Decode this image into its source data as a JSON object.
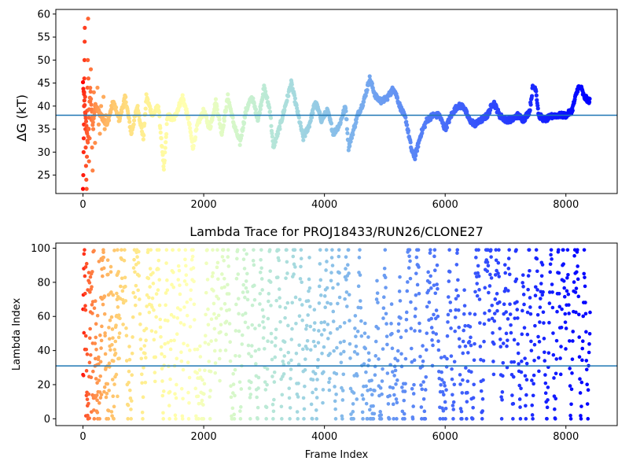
{
  "chart_data": [
    {
      "type": "scatter",
      "title": "",
      "xlabel": "",
      "ylabel": "ΔG (kT)",
      "xlim": [
        -450,
        8850
      ],
      "ylim": [
        21,
        61
      ],
      "xticks": [
        0,
        2000,
        4000,
        6000,
        8000
      ],
      "xtick_labels": [
        "0",
        "2000",
        "4000",
        "6000",
        "8000"
      ],
      "yticks": [
        25,
        30,
        35,
        40,
        45,
        50,
        55,
        60
      ],
      "ytick_labels": [
        "25",
        "30",
        "35",
        "40",
        "45",
        "50",
        "55",
        "60"
      ],
      "hline": 38,
      "hline_color": "#1f77b4",
      "colormap": "rainbow",
      "x_max": 8400,
      "trace_knots": [
        [
          0,
          45
        ],
        [
          40,
          38
        ],
        [
          80,
          32
        ],
        [
          120,
          44
        ],
        [
          160,
          36
        ],
        [
          200,
          40
        ],
        [
          300,
          38
        ],
        [
          400,
          36
        ],
        [
          500,
          41
        ],
        [
          600,
          37
        ],
        [
          700,
          42
        ],
        [
          800,
          34
        ],
        [
          900,
          40
        ],
        [
          1000,
          33
        ],
        [
          1050,
          42
        ],
        [
          1150,
          38
        ],
        [
          1250,
          40
        ],
        [
          1340,
          26
        ],
        [
          1400,
          38
        ],
        [
          1500,
          37
        ],
        [
          1650,
          42
        ],
        [
          1750,
          37
        ],
        [
          1820,
          31
        ],
        [
          1900,
          36
        ],
        [
          2000,
          39
        ],
        [
          2100,
          35
        ],
        [
          2200,
          41
        ],
        [
          2300,
          34
        ],
        [
          2400,
          42
        ],
        [
          2500,
          36
        ],
        [
          2600,
          32
        ],
        [
          2700,
          39
        ],
        [
          2800,
          42
        ],
        [
          2900,
          37
        ],
        [
          3000,
          44
        ],
        [
          3100,
          39
        ],
        [
          3150,
          31
        ],
        [
          3250,
          35
        ],
        [
          3350,
          40
        ],
        [
          3450,
          45
        ],
        [
          3550,
          39
        ],
        [
          3650,
          33
        ],
        [
          3750,
          36
        ],
        [
          3850,
          41
        ],
        [
          3950,
          37
        ],
        [
          4050,
          39
        ],
        [
          4150,
          34
        ],
        [
          4250,
          36
        ],
        [
          4350,
          40
        ],
        [
          4400,
          31
        ],
        [
          4550,
          38
        ],
        [
          4650,
          41
        ],
        [
          4750,
          46
        ],
        [
          4850,
          42
        ],
        [
          4950,
          41
        ],
        [
          5050,
          42
        ],
        [
          5150,
          44
        ],
        [
          5250,
          40
        ],
        [
          5350,
          37
        ],
        [
          5450,
          30
        ],
        [
          5500,
          29
        ],
        [
          5600,
          34
        ],
        [
          5700,
          37
        ],
        [
          5800,
          38
        ],
        [
          5900,
          38
        ],
        [
          6000,
          35
        ],
        [
          6100,
          38
        ],
        [
          6200,
          40
        ],
        [
          6300,
          40
        ],
        [
          6400,
          37
        ],
        [
          6500,
          36
        ],
        [
          6600,
          37
        ],
        [
          6700,
          38
        ],
        [
          6800,
          41
        ],
        [
          6900,
          38
        ],
        [
          7000,
          37
        ],
        [
          7100,
          37
        ],
        [
          7200,
          38
        ],
        [
          7300,
          37
        ],
        [
          7400,
          39
        ],
        [
          7450,
          44
        ],
        [
          7500,
          44
        ],
        [
          7550,
          38
        ],
        [
          7650,
          37
        ],
        [
          7800,
          38
        ],
        [
          8000,
          38
        ],
        [
          8100,
          39
        ],
        [
          8200,
          44
        ],
        [
          8250,
          44
        ],
        [
          8300,
          42
        ],
        [
          8400,
          41
        ]
      ],
      "early_points": [
        [
          0,
          22
        ],
        [
          5,
          25
        ],
        [
          10,
          30
        ],
        [
          12,
          33
        ],
        [
          15,
          36
        ],
        [
          18,
          40
        ],
        [
          20,
          43
        ],
        [
          22,
          46
        ],
        [
          25,
          50
        ],
        [
          28,
          54
        ],
        [
          30,
          57
        ],
        [
          35,
          42
        ],
        [
          38,
          38
        ],
        [
          40,
          35
        ],
        [
          45,
          31
        ],
        [
          50,
          27
        ],
        [
          55,
          24
        ],
        [
          60,
          22
        ],
        [
          65,
          29
        ],
        [
          70,
          39
        ],
        [
          75,
          44
        ],
        [
          80,
          50
        ],
        [
          85,
          59
        ],
        [
          90,
          46
        ],
        [
          95,
          35
        ],
        [
          100,
          28
        ],
        [
          110,
          33
        ],
        [
          120,
          41
        ],
        [
          130,
          48
        ],
        [
          140,
          37
        ],
        [
          150,
          31
        ],
        [
          160,
          26
        ],
        [
          170,
          35
        ],
        [
          180,
          43
        ],
        [
          190,
          38
        ],
        [
          200,
          32
        ],
        [
          220,
          39
        ],
        [
          240,
          44
        ],
        [
          260,
          36
        ],
        [
          280,
          34
        ],
        [
          300,
          40
        ],
        [
          320,
          37
        ],
        [
          340,
          42
        ],
        [
          360,
          35
        ],
        [
          380,
          38
        ]
      ]
    },
    {
      "type": "scatter",
      "title": "Lambda Trace for PROJ18433/RUN26/CLONE27",
      "xlabel": "Frame Index",
      "ylabel": "Lambda Index",
      "xlim": [
        -450,
        8850
      ],
      "ylim": [
        -4,
        103
      ],
      "xticks": [
        0,
        2000,
        4000,
        6000,
        8000
      ],
      "xtick_labels": [
        "0",
        "2000",
        "4000",
        "6000",
        "8000"
      ],
      "yticks": [
        0,
        20,
        40,
        60,
        80,
        100
      ],
      "ytick_labels": [
        "0",
        "20",
        "40",
        "60",
        "80",
        "100"
      ],
      "hline": 31,
      "hline_color": "#1f77b4",
      "colormap": "rainbow",
      "x_max": 8400,
      "y_range": [
        0,
        99
      ],
      "points_per_frame_stride": 6
    }
  ]
}
